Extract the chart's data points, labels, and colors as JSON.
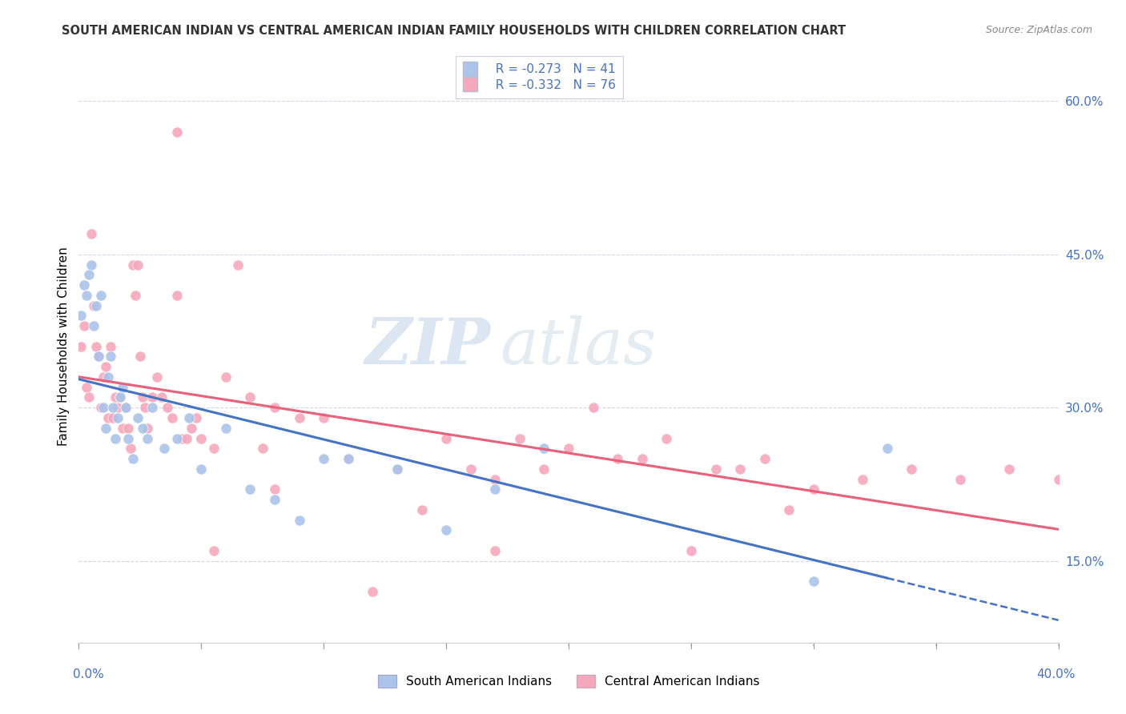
{
  "title": "SOUTH AMERICAN INDIAN VS CENTRAL AMERICAN INDIAN FAMILY HOUSEHOLDS WITH CHILDREN CORRELATION CHART",
  "source": "Source: ZipAtlas.com",
  "ylabel": "Family Households with Children",
  "legend_blue_r": "R = -0.273",
  "legend_blue_n": "N = 41",
  "legend_pink_r": "R = -0.332",
  "legend_pink_n": "N = 76",
  "legend_blue_label": "South American Indians",
  "legend_pink_label": "Central American Indians",
  "blue_color": "#aac4ea",
  "pink_color": "#f5a8bc",
  "blue_line_color": "#4472c4",
  "pink_line_color": "#e8607a",
  "watermark_zip": "ZIP",
  "watermark_atlas": "atlas",
  "background_color": "#ffffff",
  "grid_color": "#d0d8e8",
  "xlim": [
    0.0,
    0.4
  ],
  "ylim": [
    0.07,
    0.65
  ],
  "ytick_vals": [
    0.15,
    0.3,
    0.45,
    0.6
  ],
  "ytick_labels": [
    "15.0%",
    "30.0%",
    "45.0%",
    "60.0%"
  ],
  "blue_scatter_x": [
    0.001,
    0.002,
    0.003,
    0.004,
    0.005,
    0.006,
    0.007,
    0.008,
    0.009,
    0.01,
    0.011,
    0.012,
    0.013,
    0.014,
    0.015,
    0.016,
    0.017,
    0.018,
    0.019,
    0.02,
    0.022,
    0.024,
    0.026,
    0.028,
    0.03,
    0.035,
    0.04,
    0.045,
    0.05,
    0.06,
    0.07,
    0.08,
    0.09,
    0.1,
    0.11,
    0.13,
    0.15,
    0.17,
    0.19,
    0.3,
    0.33
  ],
  "blue_scatter_y": [
    0.39,
    0.42,
    0.41,
    0.43,
    0.44,
    0.38,
    0.4,
    0.35,
    0.41,
    0.3,
    0.28,
    0.33,
    0.35,
    0.3,
    0.27,
    0.29,
    0.31,
    0.32,
    0.3,
    0.27,
    0.25,
    0.29,
    0.28,
    0.27,
    0.3,
    0.26,
    0.27,
    0.29,
    0.24,
    0.28,
    0.22,
    0.21,
    0.19,
    0.25,
    0.25,
    0.24,
    0.18,
    0.22,
    0.26,
    0.13,
    0.26
  ],
  "pink_scatter_x": [
    0.001,
    0.002,
    0.003,
    0.004,
    0.005,
    0.006,
    0.007,
    0.008,
    0.009,
    0.01,
    0.011,
    0.012,
    0.013,
    0.014,
    0.015,
    0.016,
    0.017,
    0.018,
    0.019,
    0.02,
    0.021,
    0.022,
    0.023,
    0.024,
    0.025,
    0.026,
    0.027,
    0.028,
    0.03,
    0.032,
    0.034,
    0.036,
    0.038,
    0.04,
    0.042,
    0.044,
    0.046,
    0.048,
    0.05,
    0.055,
    0.06,
    0.065,
    0.07,
    0.075,
    0.08,
    0.09,
    0.1,
    0.11,
    0.12,
    0.13,
    0.14,
    0.15,
    0.16,
    0.17,
    0.18,
    0.19,
    0.2,
    0.21,
    0.22,
    0.23,
    0.24,
    0.25,
    0.26,
    0.27,
    0.28,
    0.29,
    0.3,
    0.32,
    0.34,
    0.36,
    0.38,
    0.4,
    0.04,
    0.055,
    0.08,
    0.17
  ],
  "pink_scatter_y": [
    0.36,
    0.38,
    0.32,
    0.31,
    0.47,
    0.4,
    0.36,
    0.35,
    0.3,
    0.33,
    0.34,
    0.29,
    0.36,
    0.29,
    0.31,
    0.3,
    0.31,
    0.28,
    0.3,
    0.28,
    0.26,
    0.44,
    0.41,
    0.44,
    0.35,
    0.31,
    0.3,
    0.28,
    0.31,
    0.33,
    0.31,
    0.3,
    0.29,
    0.41,
    0.27,
    0.27,
    0.28,
    0.29,
    0.27,
    0.26,
    0.33,
    0.44,
    0.31,
    0.26,
    0.22,
    0.29,
    0.29,
    0.25,
    0.12,
    0.24,
    0.2,
    0.27,
    0.24,
    0.23,
    0.27,
    0.24,
    0.26,
    0.3,
    0.25,
    0.25,
    0.27,
    0.16,
    0.24,
    0.24,
    0.25,
    0.2,
    0.22,
    0.23,
    0.24,
    0.23,
    0.24,
    0.23,
    0.57,
    0.16,
    0.3,
    0.16
  ]
}
